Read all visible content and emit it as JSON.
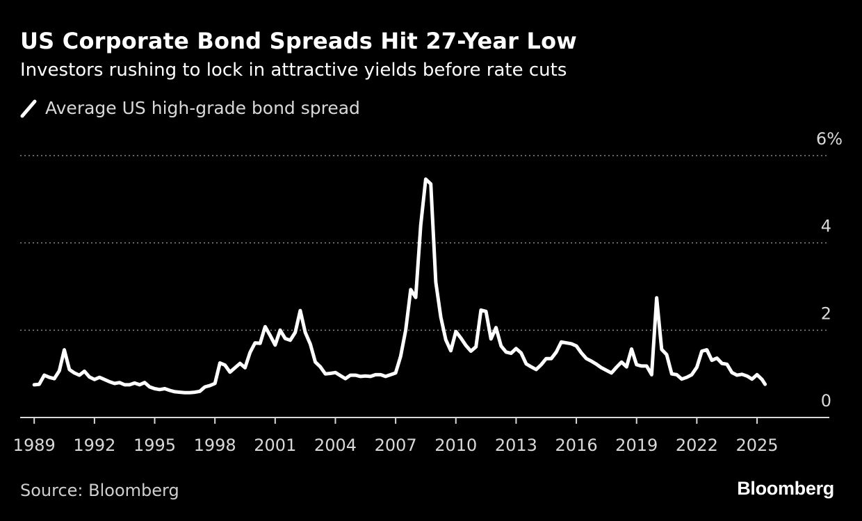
{
  "header": {
    "title": "US Corporate Bond Spreads Hit 27-Year Low",
    "subtitle": "Investors rushing to lock in attractive yields before rate cuts"
  },
  "legend": {
    "label": "Average US high-grade bond spread",
    "color": "#ffffff"
  },
  "footer": {
    "source": "Source: Bloomberg",
    "brand": "Bloomberg"
  },
  "colors": {
    "background": "#000000",
    "line": "#ffffff",
    "grid": "#8a8a8a",
    "axis_text": "#d9d9d9"
  },
  "chart_data": {
    "type": "line",
    "title": "US Corporate Bond Spreads Hit 27-Year Low",
    "subtitle": "Investors rushing to lock in attractive yields before rate cuts",
    "xlabel": "",
    "ylabel": "",
    "xlim": [
      1988.3,
      2028.6
    ],
    "ylim": [
      0,
      6
    ],
    "grid": true,
    "legend_position": "top-left",
    "x_ticks": [
      1989,
      1992,
      1995,
      1998,
      2001,
      2004,
      2007,
      2010,
      2013,
      2016,
      2019,
      2022,
      2025
    ],
    "x_tick_labels": [
      "1989",
      "1992",
      "1995",
      "1998",
      "2001",
      "2004",
      "2007",
      "2010",
      "2013",
      "2016",
      "2019",
      "2022",
      "2025"
    ],
    "y_ticks": [
      0,
      2,
      4,
      6
    ],
    "y_tick_labels": [
      "0",
      "2",
      "4",
      "6%"
    ],
    "series": [
      {
        "name": "Average US high-grade bond spread",
        "x": [
          1989.0,
          1989.25,
          1989.5,
          1989.75,
          1990.0,
          1990.25,
          1990.5,
          1990.75,
          1991.0,
          1991.25,
          1991.5,
          1991.75,
          1992.0,
          1992.25,
          1992.5,
          1992.75,
          1993.0,
          1993.25,
          1993.5,
          1993.75,
          1994.0,
          1994.25,
          1994.5,
          1994.75,
          1995.0,
          1995.25,
          1995.5,
          1995.75,
          1996.0,
          1996.25,
          1996.5,
          1996.75,
          1997.0,
          1997.25,
          1997.5,
          1997.75,
          1998.0,
          1998.25,
          1998.5,
          1998.75,
          1999.0,
          1999.25,
          1999.5,
          1999.75,
          2000.0,
          2000.25,
          2000.5,
          2000.75,
          2001.0,
          2001.25,
          2001.5,
          2001.75,
          2002.0,
          2002.25,
          2002.5,
          2002.75,
          2003.0,
          2003.25,
          2003.5,
          2003.75,
          2004.0,
          2004.25,
          2004.5,
          2004.75,
          2005.0,
          2005.25,
          2005.5,
          2005.75,
          2006.0,
          2006.25,
          2006.5,
          2006.75,
          2007.0,
          2007.25,
          2007.5,
          2007.75,
          2008.0,
          2008.25,
          2008.5,
          2008.75,
          2009.0,
          2009.25,
          2009.5,
          2009.75,
          2010.0,
          2010.25,
          2010.5,
          2010.75,
          2011.0,
          2011.25,
          2011.5,
          2011.75,
          2012.0,
          2012.25,
          2012.5,
          2012.75,
          2013.0,
          2013.25,
          2013.5,
          2013.75,
          2014.0,
          2014.25,
          2014.5,
          2014.75,
          2015.0,
          2015.25,
          2015.5,
          2015.75,
          2016.0,
          2016.25,
          2016.5,
          2016.75,
          2017.0,
          2017.25,
          2017.5,
          2017.75,
          2018.0,
          2018.25,
          2018.5,
          2018.75,
          2019.0,
          2019.25,
          2019.5,
          2019.75,
          2020.0,
          2020.25,
          2020.5,
          2020.75,
          2021.0,
          2021.25,
          2021.5,
          2021.75,
          2022.0,
          2022.25,
          2022.5,
          2022.75,
          2023.0,
          2023.25,
          2023.5,
          2023.75,
          2024.0,
          2024.25,
          2024.5,
          2024.75,
          2025.0,
          2025.25,
          2025.4
        ],
        "values": [
          0.75,
          0.76,
          0.97,
          0.92,
          0.89,
          1.07,
          1.55,
          1.1,
          1.02,
          0.97,
          1.06,
          0.93,
          0.87,
          0.92,
          0.87,
          0.82,
          0.78,
          0.8,
          0.75,
          0.75,
          0.79,
          0.75,
          0.8,
          0.7,
          0.66,
          0.64,
          0.66,
          0.62,
          0.59,
          0.58,
          0.57,
          0.57,
          0.58,
          0.6,
          0.7,
          0.73,
          0.78,
          1.25,
          1.2,
          1.04,
          1.14,
          1.24,
          1.14,
          1.49,
          1.71,
          1.7,
          2.08,
          1.88,
          1.66,
          2.0,
          1.81,
          1.77,
          1.95,
          2.45,
          1.95,
          1.68,
          1.27,
          1.16,
          1.0,
          1.01,
          1.03,
          0.96,
          0.89,
          0.97,
          0.97,
          0.94,
          0.95,
          0.94,
          0.98,
          0.98,
          0.94,
          0.98,
          1.02,
          1.4,
          2.0,
          2.93,
          2.75,
          4.4,
          5.46,
          5.35,
          3.1,
          2.3,
          1.78,
          1.53,
          1.97,
          1.82,
          1.65,
          1.52,
          1.62,
          2.46,
          2.43,
          1.8,
          2.06,
          1.64,
          1.5,
          1.47,
          1.58,
          1.48,
          1.23,
          1.16,
          1.1,
          1.21,
          1.35,
          1.35,
          1.5,
          1.73,
          1.71,
          1.69,
          1.64,
          1.48,
          1.35,
          1.29,
          1.22,
          1.14,
          1.08,
          1.02,
          1.15,
          1.27,
          1.16,
          1.57,
          1.21,
          1.18,
          1.18,
          0.98,
          2.74,
          1.56,
          1.44,
          1.0,
          0.98,
          0.88,
          0.92,
          0.98,
          1.15,
          1.52,
          1.55,
          1.31,
          1.36,
          1.24,
          1.22,
          1.03,
          0.97,
          0.99,
          0.95,
          0.88,
          0.98,
          0.87,
          0.76
        ]
      }
    ]
  }
}
